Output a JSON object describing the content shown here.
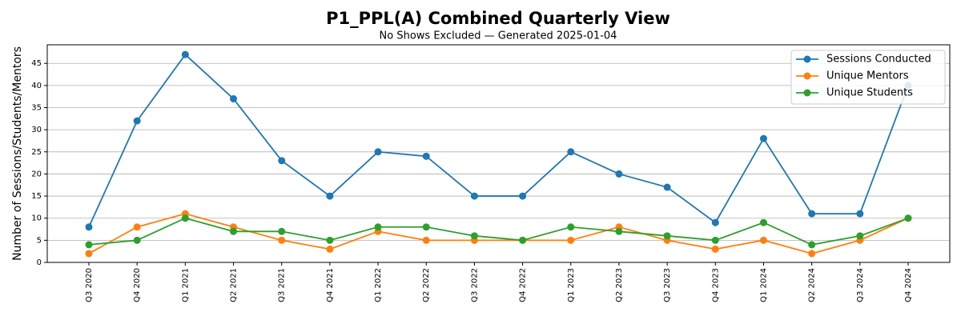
{
  "chart_data": {
    "type": "line",
    "title": "P1_PPL(A) Combined Quarterly View",
    "subtitle": "No Shows Excluded — Generated 2025-01-04",
    "y_label": "Number of Sessions/Students/Mentors",
    "categories": [
      "Q3 2020",
      "Q4 2020",
      "Q1 2021",
      "Q2 2021",
      "Q3 2021",
      "Q4 2021",
      "Q1 2022",
      "Q2 2022",
      "Q3 2022",
      "Q4 2022",
      "Q1 2023",
      "Q2 2023",
      "Q3 2023",
      "Q4 2023",
      "Q1 2024",
      "Q2 2024",
      "Q3 2024",
      "Q4 2024"
    ],
    "series": [
      {
        "name": "Sessions Conducted",
        "color": "#1f77b4",
        "values": [
          8,
          32,
          47,
          37,
          23,
          15,
          25,
          24,
          15,
          15,
          25,
          20,
          17,
          9,
          28,
          11,
          11,
          40
        ]
      },
      {
        "name": "Unique Mentors",
        "color": "#ff7f0e",
        "values": [
          2,
          8,
          11,
          8,
          5,
          3,
          7,
          5,
          5,
          5,
          5,
          8,
          5,
          3,
          5,
          2,
          5,
          10
        ]
      },
      {
        "name": "Unique Students",
        "color": "#2ca02c",
        "values": [
          4,
          5,
          10,
          7,
          7,
          5,
          8,
          8,
          6,
          5,
          8,
          7,
          6,
          5,
          9,
          4,
          6,
          10
        ]
      }
    ],
    "ylim": [
      0,
      49.2
    ],
    "yticks": [
      0,
      5,
      10,
      15,
      20,
      25,
      30,
      35,
      40,
      45
    ],
    "grid": true,
    "legend": "upper right"
  }
}
